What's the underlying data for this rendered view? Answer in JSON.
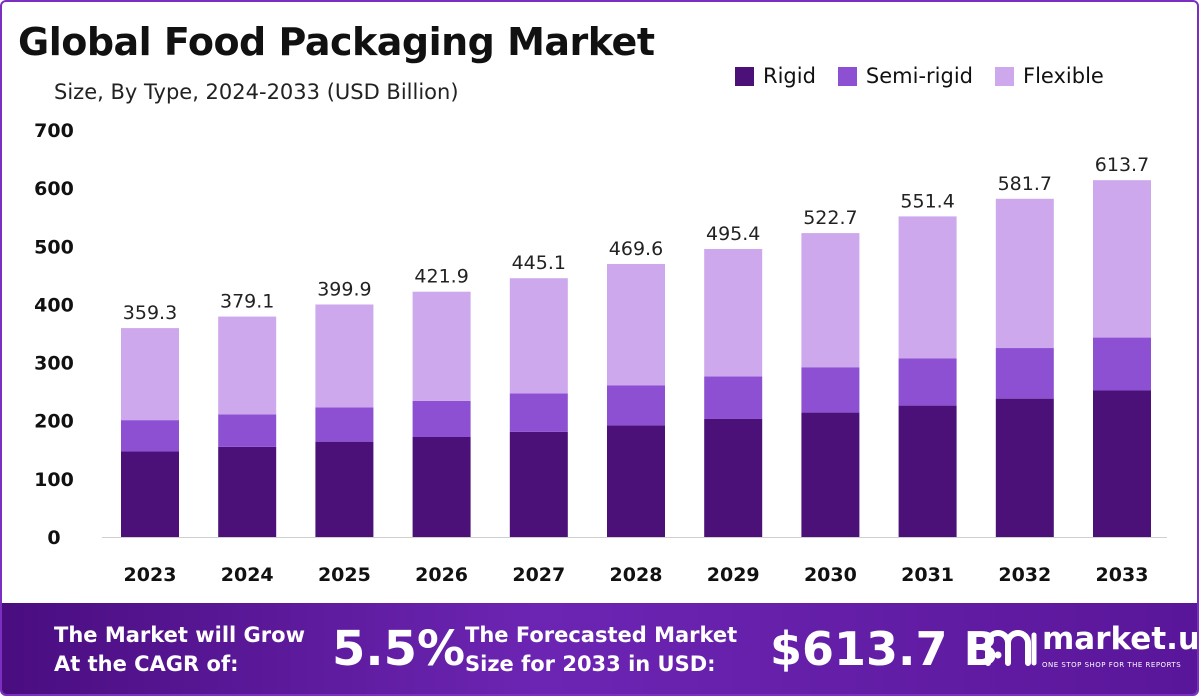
{
  "chart_data": {
    "type": "bar",
    "stacked": true,
    "title": "Global Food Packaging Market",
    "subtitle": "Size, By Type, 2024-2033 (USD Billion)",
    "categories": [
      "2023",
      "2024",
      "2025",
      "2026",
      "2027",
      "2028",
      "2029",
      "2030",
      "2031",
      "2032",
      "2033"
    ],
    "series": [
      {
        "name": "Rigid",
        "color": "#4b1179",
        "values": [
          147,
          155,
          164,
          172,
          181,
          192,
          203,
          214,
          226,
          238,
          252
        ]
      },
      {
        "name": "Semi-rigid",
        "color": "#8d50d2",
        "values": [
          54,
          56,
          59,
          62,
          66,
          69,
          73,
          78,
          81,
          87,
          91
        ]
      },
      {
        "name": "Flexible",
        "color": "#cda8ec",
        "values": [
          158.3,
          168.1,
          176.9,
          187.9,
          198.1,
          208.6,
          219.4,
          230.7,
          244.4,
          256.7,
          270.7
        ]
      }
    ],
    "totals": [
      "359.3",
      "379.1",
      "399.9",
      "421.9",
      "445.1",
      "469.6",
      "495.4",
      "522.7",
      "551.4",
      "581.7",
      "613.7"
    ],
    "yticks": [
      0,
      100,
      200,
      300,
      400,
      500,
      600,
      700
    ],
    "ylim": [
      0,
      700
    ],
    "grid": false,
    "legend_position": "top-right"
  },
  "footer": {
    "cagr_line1": "The Market will Grow",
    "cagr_line2": "At the CAGR of:",
    "cagr_value": "5.5%",
    "forecast_line1": "The Forecasted Market",
    "forecast_line2": "Size for 2033 in USD:",
    "forecast_value": "$613.7 B",
    "brand": "market.us",
    "tagline": "ONE STOP SHOP FOR THE REPORTS",
    "logo_icon": "market-us-logo-icon"
  }
}
